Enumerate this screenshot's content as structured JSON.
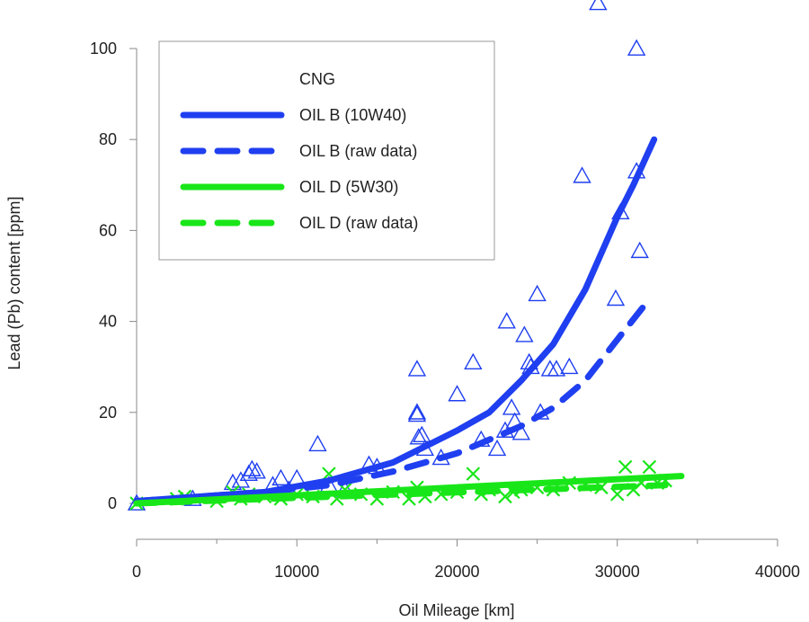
{
  "chart_data": {
    "type": "scatter",
    "title": "",
    "xlabel": "Oil Mileage [km]",
    "ylabel": "Lead (Pb) content [ppm]",
    "xlim": [
      0,
      40000
    ],
    "ylim": [
      0,
      100
    ],
    "xticks": [
      0,
      10000,
      20000,
      30000,
      40000
    ],
    "yticks": [
      0,
      20,
      40,
      60,
      80,
      100
    ],
    "grid": false,
    "legend": {
      "placement": "top-left",
      "title": "CNG",
      "entries": [
        {
          "label": "OIL B (10W40)",
          "color": "#1f3ff0",
          "style": "solid"
        },
        {
          "label": "OIL B (raw data)",
          "color": "#1f3ff0",
          "style": "dashed"
        },
        {
          "label": "OIL D (5W30)",
          "color": "#19e619",
          "style": "solid"
        },
        {
          "label": "OIL D (raw data)",
          "color": "#19e619",
          "style": "dashed"
        }
      ]
    },
    "series": [
      {
        "name": "OIL B (10W40)",
        "kind": "line",
        "style": "solid",
        "color": "#1f3ff0",
        "x": [
          0,
          4000,
          8000,
          12000,
          16000,
          20000,
          22000,
          24000,
          26000,
          28000,
          30000,
          31000,
          32300
        ],
        "y": [
          0.5,
          1.5,
          2.5,
          5,
          9,
          16,
          20,
          27,
          35,
          47,
          63,
          70,
          80
        ]
      },
      {
        "name": "OIL B (raw data)",
        "kind": "line",
        "style": "dashed",
        "color": "#1f3ff0",
        "x": [
          0,
          4000,
          8000,
          12000,
          14000,
          16000,
          18000,
          20000,
          22000,
          24000,
          26000,
          28000,
          30000,
          31800
        ],
        "y": [
          0.5,
          1.5,
          2.5,
          4,
          5.5,
          7,
          9,
          11,
          14,
          17,
          21,
          27,
          36,
          44
        ]
      },
      {
        "name": "OIL D (5W30)",
        "kind": "line",
        "style": "solid",
        "color": "#19e619",
        "x": [
          0,
          34000
        ],
        "y": [
          0,
          6
        ]
      },
      {
        "name": "OIL D (raw data)",
        "kind": "line",
        "style": "dashed",
        "color": "#19e619",
        "x": [
          0,
          33000
        ],
        "y": [
          0,
          4
        ]
      },
      {
        "name": "OIL B (raw data)",
        "kind": "points",
        "marker": "triangle",
        "color": "#1f3ff0",
        "points": [
          [
            0,
            0
          ],
          [
            3500,
            1
          ],
          [
            6000,
            4.5
          ],
          [
            6500,
            5
          ],
          [
            7000,
            6.5
          ],
          [
            7200,
            7.5
          ],
          [
            7500,
            7
          ],
          [
            8500,
            4
          ],
          [
            9000,
            5.5
          ],
          [
            9500,
            3
          ],
          [
            10000,
            5.5
          ],
          [
            11300,
            13
          ],
          [
            12000,
            4
          ],
          [
            13000,
            3
          ],
          [
            14500,
            8.5
          ],
          [
            15000,
            8
          ],
          [
            17500,
            29.5
          ],
          [
            17500,
            20
          ],
          [
            17500,
            19.5
          ],
          [
            17600,
            14.5
          ],
          [
            17800,
            15
          ],
          [
            18000,
            12
          ],
          [
            19000,
            10
          ],
          [
            20000,
            24
          ],
          [
            21000,
            31
          ],
          [
            21500,
            14
          ],
          [
            22500,
            12
          ],
          [
            23000,
            16
          ],
          [
            23100,
            40
          ],
          [
            23400,
            21
          ],
          [
            23600,
            18
          ],
          [
            24000,
            15.5
          ],
          [
            24200,
            37
          ],
          [
            24500,
            31
          ],
          [
            24600,
            30
          ],
          [
            25000,
            46
          ],
          [
            25200,
            20
          ],
          [
            25800,
            29.5
          ],
          [
            26200,
            29.5
          ],
          [
            27000,
            30
          ],
          [
            27800,
            72
          ],
          [
            29900,
            45
          ],
          [
            30200,
            64
          ],
          [
            28800,
            110
          ],
          [
            31200,
            100
          ],
          [
            31200,
            73
          ],
          [
            31400,
            55.5
          ]
        ]
      },
      {
        "name": "OIL D (raw data)",
        "kind": "points",
        "marker": "x",
        "color": "#19e619",
        "points": [
          [
            0,
            0
          ],
          [
            2500,
            1
          ],
          [
            3000,
            1.5
          ],
          [
            5000,
            0.5
          ],
          [
            6000,
            2.5
          ],
          [
            6500,
            1
          ],
          [
            7000,
            2
          ],
          [
            8000,
            1.5
          ],
          [
            9000,
            1
          ],
          [
            10000,
            2
          ],
          [
            11000,
            1.5
          ],
          [
            12000,
            6.5
          ],
          [
            12500,
            1
          ],
          [
            13000,
            3
          ],
          [
            14000,
            2
          ],
          [
            15000,
            1
          ],
          [
            16000,
            2.5
          ],
          [
            17000,
            1
          ],
          [
            17500,
            3.5
          ],
          [
            18000,
            1.5
          ],
          [
            19000,
            2
          ],
          [
            20000,
            2.5
          ],
          [
            21000,
            6.5
          ],
          [
            21500,
            2
          ],
          [
            22000,
            3
          ],
          [
            23000,
            1.5
          ],
          [
            23500,
            2.5
          ],
          [
            24000,
            3
          ],
          [
            25000,
            3.5
          ],
          [
            26000,
            3
          ],
          [
            27000,
            4.5
          ],
          [
            28000,
            4
          ],
          [
            29000,
            3.5
          ],
          [
            30000,
            2
          ],
          [
            30500,
            8
          ],
          [
            31000,
            3
          ],
          [
            31500,
            4.5
          ],
          [
            32000,
            8
          ],
          [
            32500,
            4.5
          ],
          [
            33000,
            5
          ]
        ]
      }
    ]
  }
}
